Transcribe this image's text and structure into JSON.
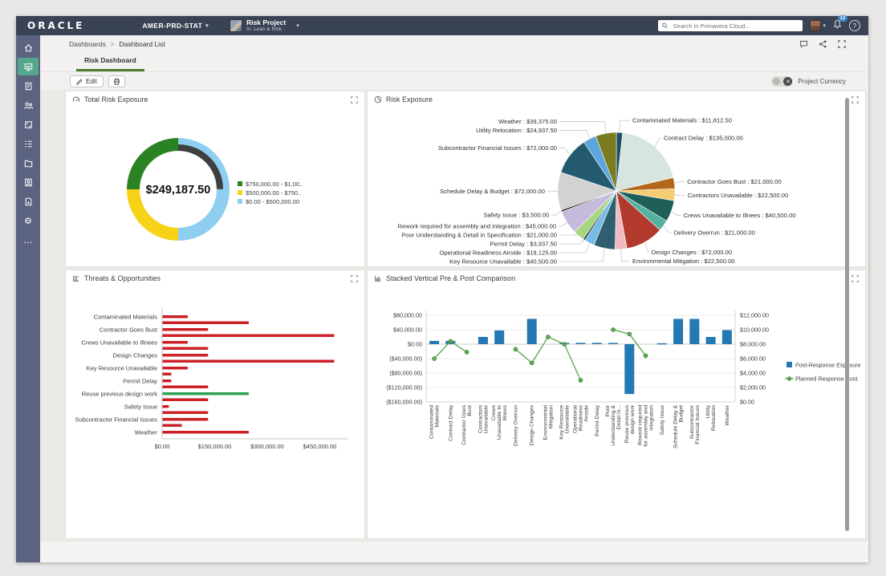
{
  "app": {
    "brand": "ORACLE",
    "workspace": "AMER-PRD-STAT",
    "project": {
      "name": "Risk Project",
      "context": "In: Lean & Risk"
    },
    "search_placeholder": "Search in Primavera Cloud...",
    "notification_count": "12",
    "help_glyph": "?"
  },
  "icons": {
    "caret": "▾",
    "breadcrumb_sep": ">",
    "more": "…",
    "gear": "⚙",
    "toggle_off_glyph": "✕"
  },
  "sidebar": {
    "items": [
      {
        "icon": "home",
        "active": false
      },
      {
        "icon": "dashboards",
        "active": true
      },
      {
        "icon": "portfolios",
        "active": false
      },
      {
        "icon": "team",
        "active": false
      },
      {
        "icon": "apps",
        "active": false
      },
      {
        "icon": "tasks",
        "active": false
      },
      {
        "icon": "files",
        "active": false
      },
      {
        "icon": "resources",
        "active": false
      },
      {
        "icon": "reports",
        "active": false
      },
      {
        "icon": "settings",
        "active": false
      },
      {
        "icon": "more",
        "active": false
      }
    ]
  },
  "breadcrumb": [
    "Dashboards",
    "Dashboard List"
  ],
  "tabs": [
    {
      "label": "Risk Dashboard",
      "active": true
    }
  ],
  "toolbar": {
    "edit_label": "Edit",
    "project_currency_label": "Project Currency",
    "project_currency_state": "off"
  },
  "panels": [
    {
      "title": "Total Risk Exposure"
    },
    {
      "title": "Risk Exposure"
    },
    {
      "title": "Threats & Opportunities"
    },
    {
      "title": "Stacked Vertical Pre & Post Comparison"
    }
  ],
  "chart_data": [
    {
      "id": "gauge",
      "type": "pie",
      "subtype": "gauge-donut",
      "title": "Total Risk Exposure",
      "center_value": "$249,187.50",
      "value": 249187.5,
      "min": 0,
      "max": 1000000,
      "needle_color": "#3f3f3f",
      "bands": [
        {
          "label": "$750,000.00 - $1,00..",
          "from": 750000,
          "to": 1000000,
          "color": "#2b8222"
        },
        {
          "label": "$500,000.00 - $750..",
          "from": 500000,
          "to": 750000,
          "color": "#f6d317"
        },
        {
          "label": "$0.00 - $500,000.00",
          "from": 0,
          "to": 500000,
          "color": "#8ecef1"
        }
      ],
      "legend_position": "right"
    },
    {
      "id": "pie",
      "type": "pie",
      "title": "Risk Exposure",
      "label_format": "{name} : {value}",
      "slices": [
        {
          "name": "Contaminated Materials",
          "value": 11812.5,
          "color": "#1e4f63"
        },
        {
          "name": "Contract Delay",
          "value": 135000.0,
          "color": "#d7e5e1"
        },
        {
          "name": "Contractor Goes Bust",
          "value": 21000.0,
          "color": "#b4671b"
        },
        {
          "name": "Contractors Unavailable",
          "value": 22500.0,
          "color": "#f4cd72"
        },
        {
          "name": "Crews Unavailable to Illnees",
          "value": 40500.0,
          "color": "#1f5f5a"
        },
        {
          "name": "Delivery Overrun",
          "value": 21000.0,
          "color": "#53b1a2"
        },
        {
          "name": "Design Changes",
          "value": 72000.0,
          "color": "#b23a2c"
        },
        {
          "name": "Environmental Mitigation",
          "value": 22500.0,
          "color": "#f2bac0"
        },
        {
          "name": "Key Resource Unavailable",
          "value": 40500.0,
          "color": "#2d5f71"
        },
        {
          "name": "Operational Readiness Airside",
          "value": 19125.0,
          "color": "#77bce7"
        },
        {
          "name": "Permit Delay",
          "value": 3937.5,
          "color": "#16394a"
        },
        {
          "name": "Poor Understanding & Detail in Specification",
          "value": 21000.0,
          "color": "#a6d67f"
        },
        {
          "name": "Rework required for assembly and integration",
          "value": 45000.0,
          "color": "#c6badd"
        },
        {
          "name": "Safety Issue",
          "value": 3500.0,
          "color": "#1c1c1c"
        },
        {
          "name": "Schedule Delay & Budget",
          "value": 72000.0,
          "color": "#d2d2d0"
        },
        {
          "name": "Subcontractor Financial Issues",
          "value": 72000.0,
          "color": "#235a6d"
        },
        {
          "name": "Utility Relocation",
          "value": 24937.5,
          "color": "#5ba6da"
        },
        {
          "name": "Weather",
          "value": 39375.0,
          "color": "#7b7c20"
        }
      ]
    },
    {
      "id": "hbar",
      "type": "bar",
      "orientation": "horizontal",
      "title": "Threats & Opportunities",
      "xticks": [
        "$0.00",
        "$150,000.00",
        "$300,000.00",
        "$450,000.00"
      ],
      "xtick_values": [
        0,
        150000,
        300000,
        450000
      ],
      "xlim": [
        0,
        500000
      ],
      "default_color": "#cb2026",
      "rows": [
        {
          "category": "Contaminated Materials",
          "values": [
            72000,
            246000
          ],
          "colors": [
            "#cb2026",
            "#cb2026"
          ]
        },
        {
          "category": "Contractor Goes Bust",
          "values": [
            130000,
            490000
          ],
          "colors": [
            "#cb2026",
            "#cb2026"
          ]
        },
        {
          "category": "Crews Unavailable to Illnees",
          "values": [
            72000,
            130000
          ],
          "colors": [
            "#cb2026",
            "#cb2026"
          ]
        },
        {
          "category": "Design Changes",
          "values": [
            130000,
            490000
          ],
          "colors": [
            "#cb2026",
            "#cb2026"
          ]
        },
        {
          "category": "Key Resource Unavailable",
          "values": [
            72000,
            25000
          ],
          "colors": [
            "#cb2026",
            "#cb2026"
          ]
        },
        {
          "category": "Permit Delay",
          "values": [
            25000,
            130000
          ],
          "colors": [
            "#cb2026",
            "#cb2026"
          ]
        },
        {
          "category": "Reuse previous design work",
          "values": [
            246000,
            130000
          ],
          "colors": [
            "#2ea153",
            "#cb2026"
          ]
        },
        {
          "category": "Safety Issue",
          "values": [
            18000,
            130000
          ],
          "colors": [
            "#cb2026",
            "#cb2026"
          ]
        },
        {
          "category": "Subcontractor Financial Issues",
          "values": [
            130000,
            55000
          ],
          "colors": [
            "#cb2026",
            "#cb2026"
          ]
        },
        {
          "category": "Weather",
          "values": [
            246000
          ],
          "colors": [
            "#cb2026"
          ]
        }
      ]
    },
    {
      "id": "combo",
      "type": "bar",
      "subtype": "bar+line",
      "title": "Stacked Vertical Pre & Post Comparison",
      "left_axis": {
        "ticks": [
          "$80,000.00",
          "$40,000.00",
          "$0.00",
          "($40,000.00)",
          "($80,000.00)",
          "($120,000.00)",
          "($160,000.00)"
        ],
        "values": [
          80000,
          40000,
          0,
          -40000,
          -80000,
          -120000,
          -160000
        ]
      },
      "right_axis": {
        "ticks": [
          "$12,000.00",
          "$10,000.00",
          "$8,000.00",
          "$6,000.00",
          "$4,000.00",
          "$2,000.00",
          "$0.00"
        ],
        "values": [
          12000,
          10000,
          8000,
          6000,
          4000,
          2000,
          0
        ]
      },
      "categories": [
        "Contaminated Materials",
        "Contract Delay",
        "Contractor Goes Bust",
        "Contractors Unavailable",
        "Crews Unavailable to Illnees",
        "Delivery Overrun",
        "Design Changes",
        "Environmental Mitigation",
        "Key Resource Unavailable",
        "Operational Readiness Airside",
        "Permit Delay",
        "Poor Understanding & Detail in Specification",
        "Reuse previous design work",
        "Rework required for assembly and integration",
        "Safety Issue",
        "Schedule Delay & Budget",
        "Subcontractor Financial Issues",
        "Utility Relocation",
        "Weather"
      ],
      "series": [
        {
          "name": "Post-Response Exposure",
          "type": "bar",
          "axis": "left",
          "color": "#2478b3",
          "values": [
            9000,
            9000,
            null,
            20000,
            38000,
            null,
            70000,
            null,
            3500,
            3500,
            3500,
            3500,
            -138000,
            null,
            2500,
            70000,
            70000,
            20000,
            39000
          ]
        },
        {
          "name": "Planned Response Cost",
          "type": "line",
          "axis": "right",
          "color": "#5fae54",
          "values": [
            6000,
            8400,
            6900,
            null,
            null,
            7300,
            5400,
            9000,
            8000,
            3000,
            null,
            10000,
            9400,
            6400,
            null,
            null,
            null,
            null,
            null
          ]
        }
      ],
      "legend_position": "right"
    }
  ]
}
